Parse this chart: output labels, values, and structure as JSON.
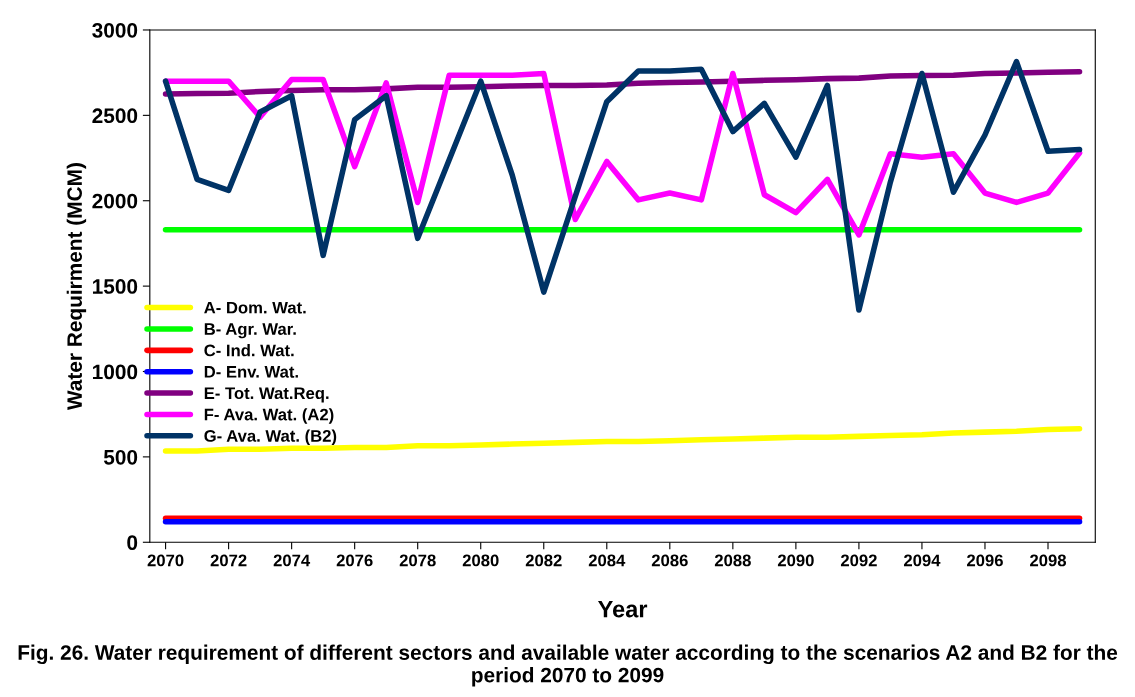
{
  "chart_data": {
    "type": "line",
    "xlabel": "Year",
    "ylabel": "Water Requirment (MCM)",
    "annotations": [
      "Fig. 26. Water requirement of different sectors and available water according to the scenarios A2 and B2 for the period 2070 to 2099"
    ],
    "x": [
      2070,
      2071,
      2072,
      2073,
      2074,
      2075,
      2076,
      2077,
      2078,
      2079,
      2080,
      2081,
      2082,
      2083,
      2084,
      2085,
      2086,
      2087,
      2088,
      2089,
      2090,
      2091,
      2092,
      2093,
      2094,
      2095,
      2096,
      2097,
      2098,
      2099
    ],
    "series": [
      {
        "name": "A- Dom. Wat.",
        "color": "#ffff00",
        "values": [
          535,
          535,
          545,
          545,
          550,
          550,
          555,
          555,
          565,
          565,
          570,
          575,
          580,
          585,
          590,
          590,
          595,
          600,
          605,
          610,
          615,
          615,
          620,
          625,
          630,
          640,
          645,
          650,
          660,
          665
        ]
      },
      {
        "name": "B- Agr. War.",
        "color": "#00ff00",
        "values": [
          1830,
          1830,
          1830,
          1830,
          1830,
          1830,
          1830,
          1830,
          1830,
          1830,
          1830,
          1830,
          1830,
          1830,
          1830,
          1830,
          1830,
          1830,
          1830,
          1830,
          1830,
          1830,
          1830,
          1830,
          1830,
          1830,
          1830,
          1830,
          1830,
          1830
        ]
      },
      {
        "name": "C- Ind. Wat.",
        "color": "#ff0000",
        "values": [
          140,
          140,
          140,
          140,
          140,
          140,
          140,
          140,
          140,
          140,
          140,
          140,
          140,
          140,
          140,
          140,
          140,
          140,
          140,
          140,
          140,
          140,
          140,
          140,
          140,
          140,
          140,
          140,
          140,
          140
        ]
      },
      {
        "name": "D- Env. Wat.",
        "color": "#0000ff",
        "values": [
          120,
          120,
          120,
          120,
          120,
          120,
          120,
          120,
          120,
          120,
          120,
          120,
          120,
          120,
          120,
          120,
          120,
          120,
          120,
          120,
          120,
          120,
          120,
          120,
          120,
          120,
          120,
          120,
          120,
          120
        ]
      },
      {
        "name": "E- Tot. Wat.Req.",
        "color": "#800080",
        "values": [
          2625,
          2628,
          2630,
          2640,
          2645,
          2650,
          2650,
          2655,
          2665,
          2665,
          2668,
          2672,
          2675,
          2675,
          2678,
          2688,
          2692,
          2695,
          2700,
          2705,
          2708,
          2715,
          2718,
          2730,
          2733,
          2735,
          2745,
          2748,
          2752,
          2755
        ]
      },
      {
        "name": "F- Ava. Wat. (A2)",
        "color": "#ff00ff",
        "values": [
          2700,
          2700,
          2700,
          2490,
          2710,
          2710,
          2200,
          2690,
          1990,
          2735,
          2735,
          2735,
          2745,
          1890,
          2230,
          2005,
          2045,
          2005,
          2745,
          2035,
          1930,
          2125,
          1800,
          2275,
          2255,
          2275,
          2045,
          1990,
          2045,
          2280
        ]
      },
      {
        "name": "G- Ava. Wat. (B2)",
        "color": "#003366",
        "values": [
          2700,
          2125,
          2060,
          2520,
          2615,
          1680,
          2475,
          2615,
          1780,
          2240,
          2700,
          2150,
          1465,
          2025,
          2580,
          2760,
          2760,
          2770,
          2405,
          2570,
          2255,
          2675,
          1360,
          2110,
          2745,
          2050,
          2385,
          2815,
          2290,
          2300
        ]
      }
    ],
    "xlim": [
      2069.5,
      2099.5
    ],
    "xticks": [
      2070,
      2072,
      2074,
      2076,
      2078,
      2080,
      2082,
      2084,
      2086,
      2088,
      2090,
      2092,
      2094,
      2096,
      2098
    ],
    "ylim": [
      0,
      3000
    ],
    "yticks": [
      0,
      500,
      1000,
      1500,
      2000,
      2500,
      3000
    ],
    "grid": false,
    "legend": "left",
    "marker": "none",
    "line_style": "solid"
  }
}
